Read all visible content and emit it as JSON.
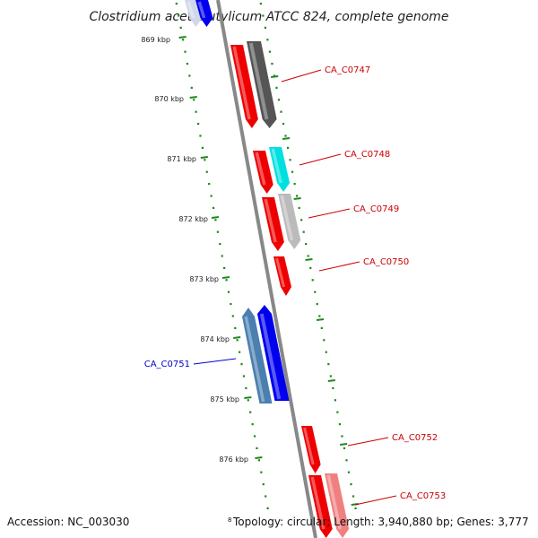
{
  "title": "Clostridium acetobutylicum ATCC 824, complete genome",
  "accession": "Accession: NC_003030",
  "topology_superscript": "8",
  "topology": "Topology: circular; Length: 3,940,880 bp; Genes: 3,777",
  "kbp_labels": [
    "869 kbp",
    "870 kbp",
    "871 kbp",
    "872 kbp",
    "873 kbp",
    "874 kbp",
    "875 kbp",
    "876 kbp"
  ],
  "colors": {
    "forward_red": "#ee0000",
    "reverse_blue": "#0000ee",
    "steel_blue": "#4a7fb0",
    "dark_grey": "#555555",
    "light_grey": "#bbbbbb",
    "cyan": "#00e0e0",
    "pink": "#f08080",
    "tick_green": "#1a8a1a",
    "backbone": "#888888",
    "label_red": "#cc0000",
    "label_blue": "#0000cc"
  },
  "gene_labels": [
    {
      "id": "CA_C0747",
      "color": "label_red"
    },
    {
      "id": "CA_C0748",
      "color": "label_red"
    },
    {
      "id": "CA_C0749",
      "color": "label_red"
    },
    {
      "id": "CA_C0750",
      "color": "label_red"
    },
    {
      "id": "CA_C0751",
      "color": "label_blue"
    },
    {
      "id": "CA_C0752",
      "color": "label_red"
    },
    {
      "id": "CA_C0753",
      "color": "label_red"
    }
  ]
}
